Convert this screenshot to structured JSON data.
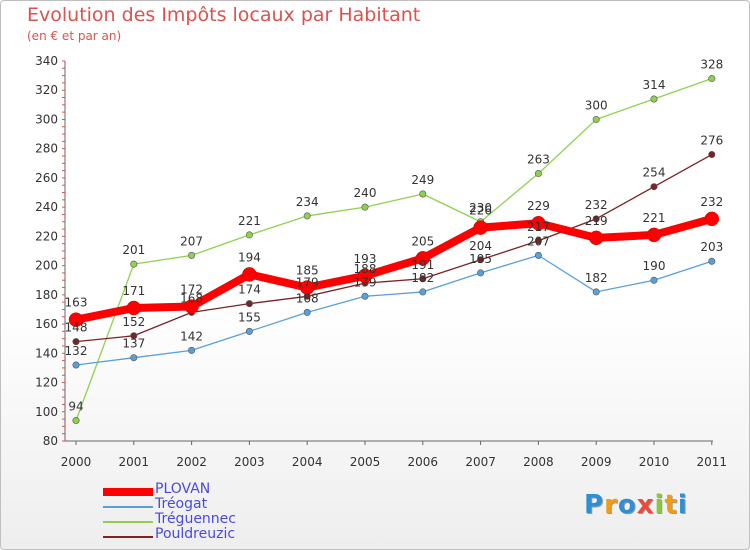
{
  "chart_data": {
    "type": "line",
    "title": "Evolution des Impôts locaux par Habitant",
    "subtitle": "(en € et par an)",
    "x": [
      "2000",
      "2001",
      "2002",
      "2003",
      "2004",
      "2005",
      "2006",
      "2007",
      "2008",
      "2009",
      "2010",
      "2011"
    ],
    "yticks": [
      "80",
      "100",
      "120",
      "140",
      "160",
      "180",
      "200",
      "220",
      "240",
      "260",
      "280",
      "300",
      "320",
      "340"
    ],
    "ylim": [
      80,
      340
    ],
    "series": [
      {
        "name": "PLOVAN",
        "color": "#ff0000",
        "values": [
          163,
          171,
          172,
          194,
          185,
          193,
          205,
          226,
          229,
          219,
          221,
          232
        ],
        "labels": [
          "163",
          "171",
          "172",
          "194",
          "185",
          "193",
          "205",
          "226",
          "229",
          "219",
          "221",
          "232"
        ]
      },
      {
        "name": "Tréogat",
        "color": "#5aa0d8",
        "values": [
          132,
          137,
          142,
          155,
          168,
          179,
          182,
          195,
          207,
          182,
          190,
          203
        ],
        "labels": [
          "132",
          "137",
          "142",
          "155",
          "168",
          "179",
          "182",
          "195",
          "207",
          "182",
          "190",
          "203"
        ]
      },
      {
        "name": "Tréguennec",
        "color": "#8fd14f",
        "values": [
          94,
          201,
          207,
          221,
          234,
          240,
          249,
          230,
          263,
          300,
          314,
          328
        ],
        "labels": [
          "94",
          "201",
          "207",
          "221",
          "234",
          "240",
          "249",
          "230",
          "263",
          "300",
          "314",
          "328"
        ]
      },
      {
        "name": "Pouldreuzic",
        "color": "#7a2424",
        "values": [
          148,
          152,
          168,
          174,
          179,
          188,
          191,
          204,
          217,
          232,
          254,
          276
        ],
        "labels": [
          "148",
          "152",
          "168",
          "174",
          "179",
          "188",
          "191",
          "204",
          "217",
          "232",
          "254",
          "276"
        ]
      }
    ],
    "legend_position": "bottom-left"
  },
  "logo": {
    "text": "Proxiti",
    "letter_colors": [
      "#2e8fd6",
      "#f39c12",
      "#2e8fd6",
      "#e74c3c",
      "#8cc63f",
      "#f39c12",
      "#2e8fd6"
    ]
  }
}
